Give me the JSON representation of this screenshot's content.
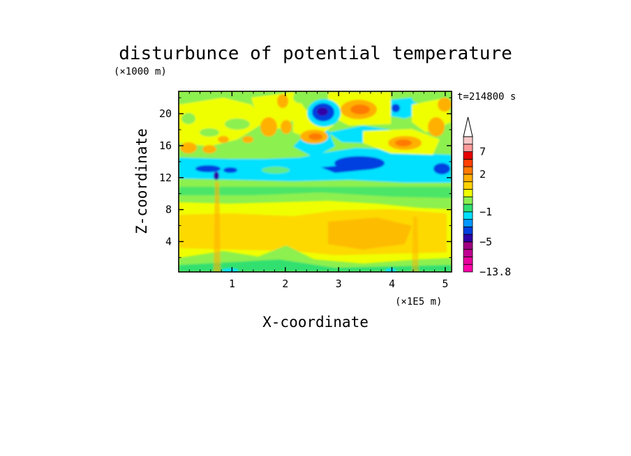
{
  "chart_data": {
    "type": "heatmap",
    "title": "disturbunce of potential temperature",
    "xlabel": "X-coordinate",
    "ylabel": "Z-coordinate",
    "x_unit": "(×1E5 m)",
    "y_unit": "(×1000 m)",
    "time_label": "t=214800 s",
    "xlim": [
      0,
      5.12
    ],
    "ylim": [
      0.2,
      22.8
    ],
    "x_ticks": [
      "1",
      "2",
      "3",
      "4",
      "5"
    ],
    "y_ticks": [
      "4",
      "8",
      "12",
      "16",
      "20"
    ],
    "colorbar": {
      "labels": [
        "7",
        "2",
        "−1",
        "−5",
        "−13.8"
      ],
      "label_levels": [
        7,
        2,
        -1,
        -5,
        -13.8
      ],
      "levels": [
        -13.8,
        -11,
        -9,
        -7,
        -5,
        -4,
        -3,
        -2,
        -1,
        -0.5,
        0,
        0.5,
        1,
        2,
        3,
        5,
        7,
        9,
        12
      ],
      "colors": [
        "#ff00a8",
        "#e8009c",
        "#c00090",
        "#a00080",
        "#3000a8",
        "#0040e0",
        "#0098ff",
        "#00e0ff",
        "#30e070",
        "#8cf050",
        "#f0ff00",
        "#ffd200",
        "#ffb000",
        "#ff7a00",
        "#ff4000",
        "#e80000",
        "#ff9a9a",
        "#f8c8c8"
      ]
    },
    "features": [
      {
        "x": 2.7,
        "z": 20.2,
        "value": -7
      },
      {
        "x": 3.45,
        "z": 13.8,
        "value": -5
      },
      {
        "x": 0.55,
        "z": 13.2,
        "value": -5
      },
      {
        "x": 4.95,
        "z": 12.8,
        "value": -5
      },
      {
        "x": 4.08,
        "z": 20.6,
        "value": -3
      },
      {
        "x": 2.4,
        "z": 17.4,
        "value": 2
      },
      {
        "x": 3.4,
        "z": 20.5,
        "value": 2
      },
      {
        "x": 4.25,
        "z": 16.5,
        "value": 2
      },
      {
        "x": 4.85,
        "z": 19.0,
        "value": 1
      },
      {
        "x": 1.55,
        "z": 18.8,
        "value": 1
      },
      {
        "x": 3.3,
        "z": 5.2,
        "value": 0.5
      }
    ]
  }
}
